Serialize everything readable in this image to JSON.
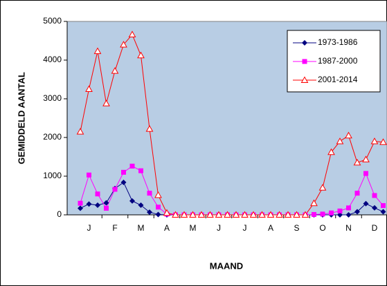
{
  "chart_data": {
    "type": "line",
    "xlabel": "MAAND",
    "ylabel": "GEMIDDELD AANTAL",
    "categories": [
      null,
      "J",
      null,
      null,
      "F",
      null,
      null,
      "M",
      null,
      null,
      "A",
      null,
      null,
      "M",
      null,
      null,
      "J",
      null,
      null,
      "J",
      null,
      null,
      "A",
      null,
      null,
      "S",
      null,
      null,
      "O",
      null,
      null,
      "N",
      null,
      null,
      "D",
      null
    ],
    "series": [
      {
        "name": "1973-1986",
        "color": "#000080",
        "marker": "diamond",
        "values": [
          170,
          280,
          250,
          310,
          680,
          840,
          360,
          250,
          70,
          10,
          0,
          0,
          0,
          0,
          0,
          0,
          0,
          0,
          0,
          0,
          0,
          0,
          0,
          0,
          0,
          0,
          0,
          0,
          0,
          0,
          0,
          0,
          80,
          290,
          180,
          80
        ]
      },
      {
        "name": "1987-2000",
        "color": "#ff00ff",
        "marker": "square",
        "values": [
          300,
          1030,
          540,
          170,
          660,
          1100,
          1260,
          1140,
          560,
          200,
          20,
          0,
          0,
          0,
          0,
          0,
          0,
          0,
          0,
          0,
          0,
          0,
          0,
          0,
          0,
          0,
          0,
          10,
          20,
          50,
          100,
          180,
          560,
          1070,
          500,
          240
        ]
      },
      {
        "name": "2001-2014",
        "color": "#ff0000",
        "marker": "triangle-open",
        "values": [
          2150,
          3250,
          4230,
          2880,
          3720,
          4400,
          4660,
          4120,
          2220,
          510,
          50,
          0,
          0,
          0,
          0,
          0,
          0,
          0,
          0,
          0,
          0,
          0,
          0,
          0,
          0,
          0,
          0,
          300,
          700,
          1620,
          1900,
          2050,
          1350,
          1430,
          1900,
          1880
        ]
      }
    ],
    "ylim": [
      0,
      5000
    ],
    "yticks": [
      0,
      1000,
      2000,
      3000,
      4000,
      5000
    ],
    "plot_background": "#b8cde4",
    "legend": "upper right"
  }
}
